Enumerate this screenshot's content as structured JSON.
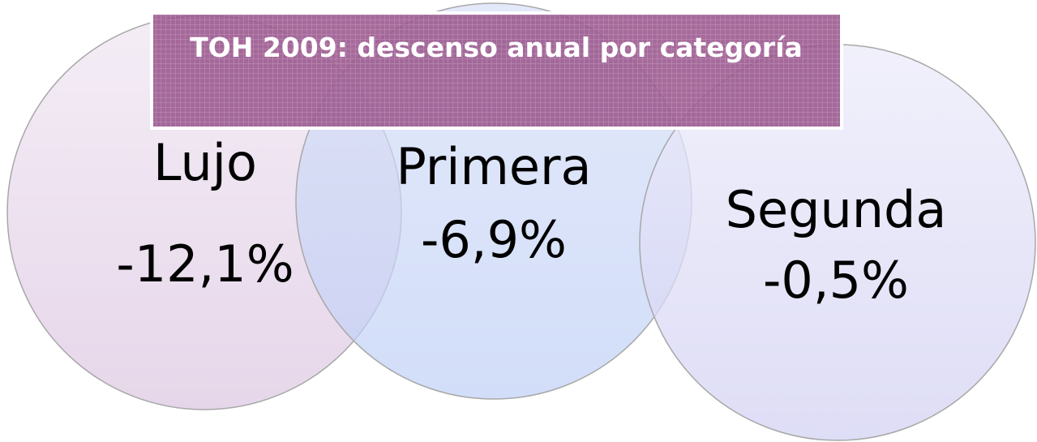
{
  "title": "TOH 2009: descenso anual por categoría",
  "nodes": [
    {
      "label": "Lujo",
      "value": "-12,1%"
    },
    {
      "label": "Primera",
      "value": "-6,9%"
    },
    {
      "label": "Segunda",
      "value": "-0,5%"
    }
  ]
}
